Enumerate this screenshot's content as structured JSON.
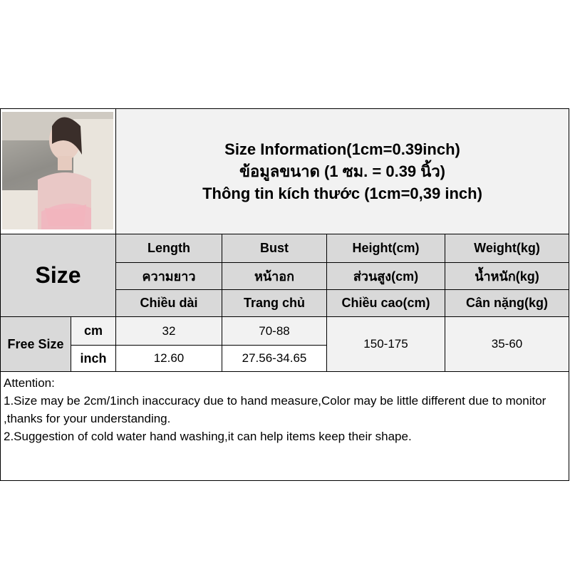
{
  "title": {
    "line1": "Size Information(1cm=0.39inch)",
    "line2": "ข้อมูลขนาด (1 ซม. = 0.39 นิ้ว)",
    "line3": "Thông tin kích thước (1cm=0,39 inch)"
  },
  "table": {
    "size_label": "Size",
    "columns": [
      {
        "en": "Length",
        "th": "ความยาว",
        "vi": "Chiều dài"
      },
      {
        "en": "Bust",
        "th": "หน้าอก",
        "vi": "Trang chủ"
      },
      {
        "en": "Height(cm)",
        "th": "ส่วนสูง(cm)",
        "vi": "Chiều cao(cm)"
      },
      {
        "en": "Weight(kg)",
        "th": "น้ำหนัก(kg)",
        "vi": "Cân nặng(kg)"
      }
    ],
    "row_label": "Free Size",
    "units": [
      "cm",
      "inch"
    ],
    "cm": {
      "length": "32",
      "bust": "70-88"
    },
    "inch": {
      "length": "12.60",
      "bust": "27.56-34.65"
    },
    "height": "150-175",
    "weight": "35-60"
  },
  "attention": {
    "heading": "Attention:",
    "line1": "1.Size may be 2cm/1inch inaccuracy due to hand measure,Color may be little different due to monitor ,thanks for your understanding.",
    "line2": "2.Suggestion of cold water hand washing,it can help items keep their shape."
  },
  "colors": {
    "header_gray": "#d9d9d9",
    "light_gray": "#f2f2f2"
  }
}
